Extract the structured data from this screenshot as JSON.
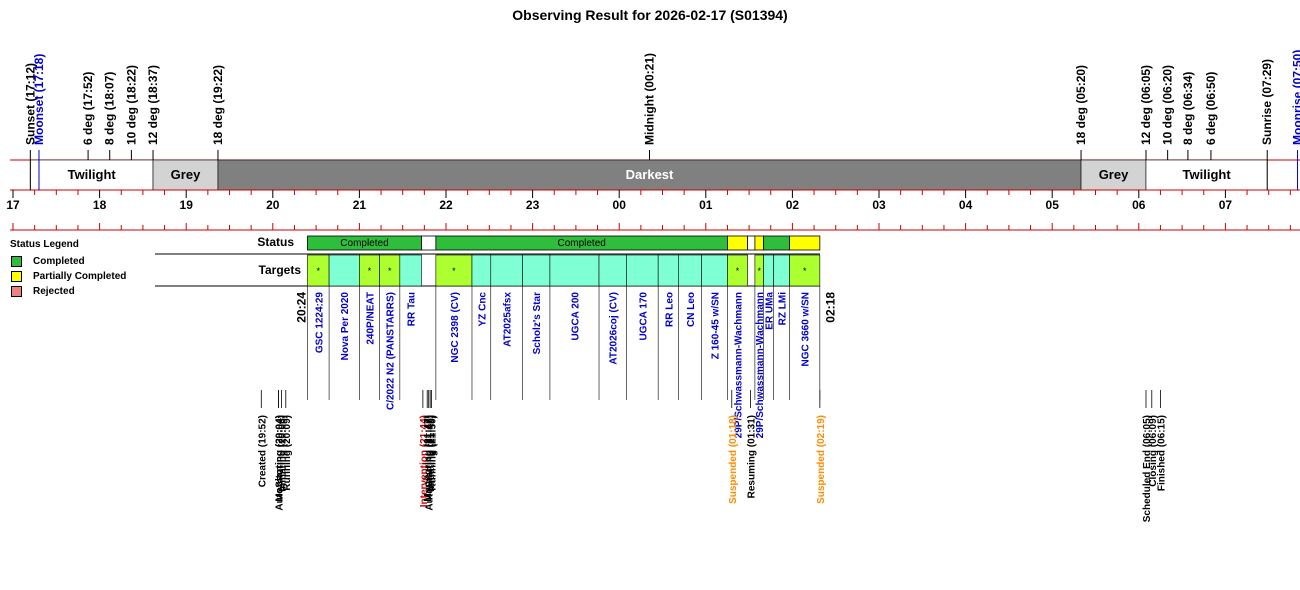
{
  "title": "Observing Result for 2026-02-17 (S01394)",
  "colors": {
    "completed": "#2fbd3c",
    "partial": "#ffff00",
    "rejected": "#f08080",
    "target_fill": "#7fffd4",
    "target_highlight": "#adff2f",
    "darkest": "#808080",
    "grey": "#d3d3d3",
    "twilight": "#ffffff",
    "axis": "#cc0000",
    "blue_text": "#0000cc",
    "orange_text": "#ff8c00",
    "red_text": "#cc0000"
  },
  "legend": {
    "title": "Status Legend",
    "items": [
      {
        "label": "Completed",
        "color": "#2fbd3c"
      },
      {
        "label": "Partially Completed",
        "color": "#ffff00"
      },
      {
        "label": "Rejected",
        "color": "#f08080"
      }
    ]
  },
  "chart_data": {
    "type": "timeline",
    "title": "Observing Result for 2026-02-17 (S01394)",
    "x_range_hours": [
      17.0,
      31.6
    ],
    "hour_ticks": [
      "17",
      "18",
      "19",
      "20",
      "21",
      "22",
      "23",
      "00",
      "01",
      "02",
      "03",
      "04",
      "05",
      "06",
      "07"
    ],
    "events_top": [
      {
        "label": "Sunset (17:12)",
        "t": 17.2,
        "color": "black"
      },
      {
        "label": "Moonset (17:18)",
        "t": 17.3,
        "color": "blue"
      },
      {
        "label": "6 deg (17:52)",
        "t": 17.867,
        "color": "black"
      },
      {
        "label": "8 deg (18:07)",
        "t": 18.117,
        "color": "black"
      },
      {
        "label": "10 deg (18:22)",
        "t": 18.367,
        "color": "black"
      },
      {
        "label": "12 deg (18:37)",
        "t": 18.617,
        "color": "black"
      },
      {
        "label": "18 deg (19:22)",
        "t": 19.367,
        "color": "black"
      },
      {
        "label": "Midnight (00:21)",
        "t": 24.35,
        "color": "black"
      },
      {
        "label": "18 deg (05:20)",
        "t": 29.333,
        "color": "black"
      },
      {
        "label": "12 deg (06:05)",
        "t": 30.083,
        "color": "black"
      },
      {
        "label": "10 deg (06:20)",
        "t": 30.333,
        "color": "black"
      },
      {
        "label": "8 deg (06:34)",
        "t": 30.567,
        "color": "black"
      },
      {
        "label": "6 deg (06:50)",
        "t": 30.833,
        "color": "black"
      },
      {
        "label": "Sunrise (07:29)",
        "t": 31.483,
        "color": "black"
      },
      {
        "label": "Moonrise (07:50)",
        "t": 31.833,
        "color": "blue"
      }
    ],
    "sky_bands": [
      {
        "label": "Twilight",
        "start": 17.2,
        "end": 18.617,
        "fill": "twilight"
      },
      {
        "label": "Grey",
        "start": 18.617,
        "end": 19.367,
        "fill": "grey"
      },
      {
        "label": "Darkest",
        "start": 19.367,
        "end": 29.333,
        "fill": "darkest"
      },
      {
        "label": "Grey",
        "start": 29.333,
        "end": 30.083,
        "fill": "grey"
      },
      {
        "label": "Twilight",
        "start": 30.083,
        "end": 31.483,
        "fill": "twilight"
      }
    ],
    "row_labels": {
      "status": "Status",
      "targets": "Targets"
    },
    "status_segments": [
      {
        "label": "Completed",
        "start": 20.4,
        "end": 21.717,
        "status": "completed"
      },
      {
        "label": "",
        "start": 21.717,
        "end": 21.883,
        "status": "none"
      },
      {
        "label": "Completed",
        "start": 21.883,
        "end": 25.25,
        "status": "completed"
      },
      {
        "label": "",
        "start": 25.25,
        "end": 25.483,
        "status": "partial"
      },
      {
        "label": "",
        "start": 25.483,
        "end": 25.567,
        "status": "none"
      },
      {
        "label": "",
        "start": 25.567,
        "end": 25.667,
        "status": "partial"
      },
      {
        "label": "",
        "start": 25.667,
        "end": 25.967,
        "status": "completed"
      },
      {
        "label": "",
        "start": 25.967,
        "end": 26.317,
        "status": "partial"
      }
    ],
    "targets": [
      {
        "name": "GSC 1224:29",
        "start": 20.4,
        "end": 20.65,
        "fill": "highlight",
        "mark": "*"
      },
      {
        "name": "Nova Per 2020",
        "start": 20.65,
        "end": 21.0,
        "fill": "cyan",
        "mark": ""
      },
      {
        "name": "240P/NEAT",
        "start": 21.0,
        "end": 21.233,
        "fill": "highlight",
        "mark": "*"
      },
      {
        "name": "C/2022 N2 (PANSTARRS)",
        "start": 21.233,
        "end": 21.467,
        "fill": "highlight",
        "mark": "*"
      },
      {
        "name": "RR Tau",
        "start": 21.467,
        "end": 21.717,
        "fill": "cyan",
        "mark": ""
      },
      {
        "name": "NGC 2398 (CV)",
        "start": 21.883,
        "end": 22.3,
        "fill": "highlight",
        "mark": "*"
      },
      {
        "name": "YZ Cnc",
        "start": 22.3,
        "end": 22.517,
        "fill": "cyan",
        "mark": ""
      },
      {
        "name": "AT2025afsx",
        "start": 22.517,
        "end": 22.883,
        "fill": "cyan",
        "mark": ""
      },
      {
        "name": "Scholz's Star",
        "start": 22.883,
        "end": 23.2,
        "fill": "cyan",
        "mark": ""
      },
      {
        "name": "UGCA 200",
        "start": 23.2,
        "end": 23.767,
        "fill": "cyan",
        "mark": ""
      },
      {
        "name": "AT2026coj (CV)",
        "start": 23.767,
        "end": 24.083,
        "fill": "cyan",
        "mark": ""
      },
      {
        "name": "UGCA 170",
        "start": 24.083,
        "end": 24.45,
        "fill": "cyan",
        "mark": ""
      },
      {
        "name": "RR Leo",
        "start": 24.45,
        "end": 24.683,
        "fill": "cyan",
        "mark": ""
      },
      {
        "name": "CN Leo",
        "start": 24.683,
        "end": 24.95,
        "fill": "cyan",
        "mark": ""
      },
      {
        "name": "Z 160-45 w/SN",
        "start": 24.95,
        "end": 25.25,
        "fill": "cyan",
        "mark": ""
      },
      {
        "name": "29P/Schwassmann-Wachmann",
        "start": 25.25,
        "end": 25.483,
        "fill": "highlight",
        "mark": "*"
      },
      {
        "name": "29P/Schwassmann-Wachmann",
        "start": 25.567,
        "end": 25.667,
        "fill": "highlight",
        "mark": "*"
      },
      {
        "name": "ER UMa",
        "start": 25.667,
        "end": 25.783,
        "fill": "cyan",
        "mark": ""
      },
      {
        "name": "RZ LMi",
        "start": 25.783,
        "end": 25.967,
        "fill": "cyan",
        "mark": ""
      },
      {
        "name": "NGC 3660 w/SN",
        "start": 25.967,
        "end": 26.317,
        "fill": "highlight",
        "mark": "*"
      }
    ],
    "time_marks": [
      {
        "label": "20:24",
        "t": 20.4
      },
      {
        "label": "02:18",
        "t": 26.3
      }
    ],
    "events_bottom": [
      {
        "label": "Created (19:52)",
        "t": 19.867,
        "color": "black"
      },
      {
        "label": "Monitoring (20:04)",
        "t": 20.067,
        "color": "black"
      },
      {
        "label": "AutoStarting (20:04)",
        "t": 20.067,
        "color": "black"
      },
      {
        "label": "Initiating (20:06)",
        "t": 20.1,
        "color": "black"
      },
      {
        "label": "Running (20:09)",
        "t": 20.15,
        "color": "black"
      },
      {
        "label": "Intervention (21:44)",
        "t": 21.733,
        "color": "red"
      },
      {
        "label": "Monitoring (21:47)",
        "t": 21.783,
        "color": "black"
      },
      {
        "label": "AutoStarting (21:48)",
        "t": 21.8,
        "color": "black"
      },
      {
        "label": "Initiating (21:49)",
        "t": 21.817,
        "color": "black"
      },
      {
        "label": "Running (21:50)",
        "t": 21.833,
        "color": "black"
      },
      {
        "label": "Suspended (01:18)",
        "t": 25.3,
        "color": "orange"
      },
      {
        "label": "Resuming (01:31)",
        "t": 25.517,
        "color": "black"
      },
      {
        "label": "Suspended (02:19)",
        "t": 26.317,
        "color": "orange"
      },
      {
        "label": "Scheduled End (06:05)",
        "t": 30.083,
        "color": "black"
      },
      {
        "label": "Closing (06:09)",
        "t": 30.15,
        "color": "black"
      },
      {
        "label": "Finished (06:15)",
        "t": 30.25,
        "color": "black"
      }
    ]
  }
}
